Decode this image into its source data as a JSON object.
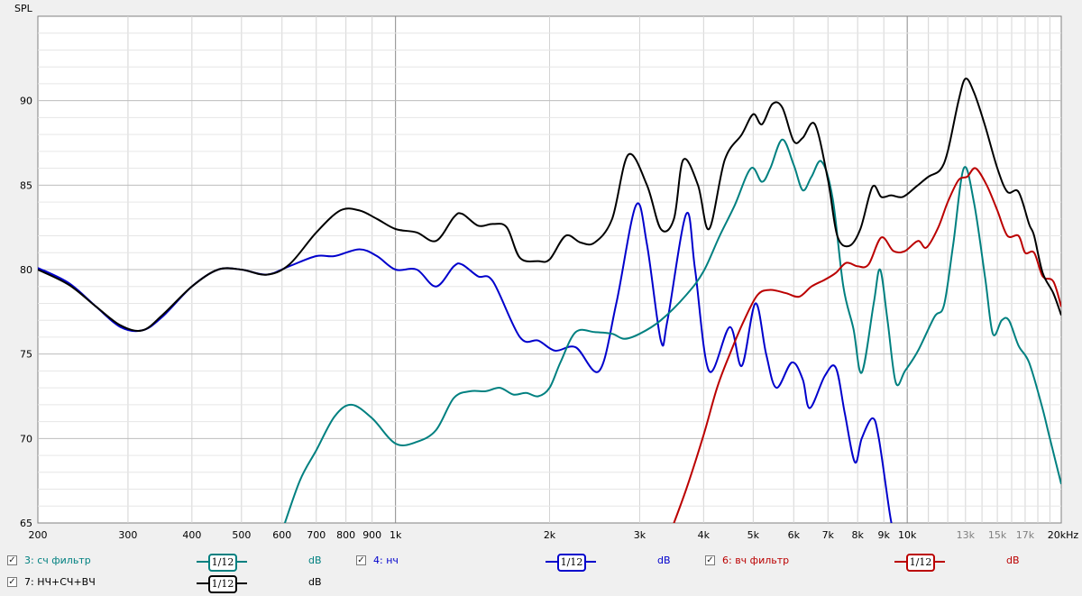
{
  "chart_data": {
    "type": "line",
    "ylabel": "SPL",
    "x_unit_label": "20kHz",
    "xscale": "log",
    "xlim": [
      200,
      20000
    ],
    "ylim": [
      65,
      95
    ],
    "grid": true,
    "y_ticks": [
      65,
      70,
      75,
      80,
      85,
      90
    ],
    "x_ticks": [
      {
        "v": 200,
        "label": "200"
      },
      {
        "v": 300,
        "label": "300"
      },
      {
        "v": 400,
        "label": "400"
      },
      {
        "v": 500,
        "label": "500"
      },
      {
        "v": 600,
        "label": "600"
      },
      {
        "v": 700,
        "label": "700"
      },
      {
        "v": 800,
        "label": "800"
      },
      {
        "v": 900,
        "label": "900"
      },
      {
        "v": 1000,
        "label": "1k"
      },
      {
        "v": 2000,
        "label": "2k"
      },
      {
        "v": 3000,
        "label": "3k"
      },
      {
        "v": 4000,
        "label": "4k"
      },
      {
        "v": 5000,
        "label": "5k"
      },
      {
        "v": 6000,
        "label": "6k"
      },
      {
        "v": 7000,
        "label": "7k"
      },
      {
        "v": 8000,
        "label": "8k"
      },
      {
        "v": 9000,
        "label": "9k"
      },
      {
        "v": 10000,
        "label": "10k"
      },
      {
        "v": 13000,
        "label": "13k"
      },
      {
        "v": 15000,
        "label": "15k"
      },
      {
        "v": 17000,
        "label": "17k"
      },
      {
        "v": 20000,
        "label": "20kHz"
      }
    ],
    "series": [
      {
        "name": "4: нч",
        "color": "#0000cc",
        "points": [
          [
            200,
            80.1
          ],
          [
            230,
            79.2
          ],
          [
            260,
            77.8
          ],
          [
            290,
            76.6
          ],
          [
            320,
            76.4
          ],
          [
            350,
            77.2
          ],
          [
            400,
            79.0
          ],
          [
            450,
            80.0
          ],
          [
            500,
            80.0
          ],
          [
            560,
            79.7
          ],
          [
            620,
            80.2
          ],
          [
            700,
            80.8
          ],
          [
            760,
            80.8
          ],
          [
            850,
            81.2
          ],
          [
            920,
            80.8
          ],
          [
            1000,
            80.0
          ],
          [
            1100,
            80.0
          ],
          [
            1200,
            79.0
          ],
          [
            1300,
            80.2
          ],
          [
            1350,
            80.3
          ],
          [
            1450,
            79.6
          ],
          [
            1550,
            79.3
          ],
          [
            1750,
            76.0
          ],
          [
            1900,
            75.8
          ],
          [
            2050,
            75.2
          ],
          [
            2250,
            75.4
          ],
          [
            2500,
            74.0
          ],
          [
            2700,
            78.0
          ],
          [
            2950,
            83.8
          ],
          [
            3100,
            81.5
          ],
          [
            3300,
            75.8
          ],
          [
            3400,
            77.0
          ],
          [
            3700,
            83.3
          ],
          [
            3850,
            80.0
          ],
          [
            4100,
            74.0
          ],
          [
            4500,
            76.6
          ],
          [
            4750,
            74.3
          ],
          [
            5050,
            78.0
          ],
          [
            5300,
            75.0
          ],
          [
            5550,
            73.0
          ],
          [
            5950,
            74.5
          ],
          [
            6250,
            73.5
          ],
          [
            6450,
            71.8
          ],
          [
            6900,
            73.7
          ],
          [
            7250,
            74.2
          ],
          [
            7550,
            71.5
          ],
          [
            7900,
            68.6
          ],
          [
            8150,
            70.0
          ],
          [
            8550,
            71.2
          ],
          [
            8800,
            70.0
          ],
          [
            9250,
            65.5
          ],
          [
            9400,
            64.5
          ]
        ]
      },
      {
        "name": "3: сч фильтр",
        "color": "#008080",
        "points": [
          [
            600,
            64.5
          ],
          [
            650,
            67.5
          ],
          [
            700,
            69.3
          ],
          [
            760,
            71.3
          ],
          [
            820,
            72.0
          ],
          [
            900,
            71.2
          ],
          [
            1000,
            69.7
          ],
          [
            1100,
            69.8
          ],
          [
            1200,
            70.5
          ],
          [
            1300,
            72.4
          ],
          [
            1400,
            72.8
          ],
          [
            1500,
            72.8
          ],
          [
            1600,
            73.0
          ],
          [
            1700,
            72.6
          ],
          [
            1800,
            72.7
          ],
          [
            1900,
            72.5
          ],
          [
            2000,
            73.0
          ],
          [
            2100,
            74.5
          ],
          [
            2250,
            76.3
          ],
          [
            2450,
            76.3
          ],
          [
            2650,
            76.2
          ],
          [
            2800,
            75.9
          ],
          [
            3000,
            76.2
          ],
          [
            3300,
            77.0
          ],
          [
            3700,
            78.5
          ],
          [
            4000,
            79.9
          ],
          [
            4300,
            82.0
          ],
          [
            4600,
            83.8
          ],
          [
            4950,
            86.0
          ],
          [
            5200,
            85.2
          ],
          [
            5400,
            86.0
          ],
          [
            5700,
            87.7
          ],
          [
            6000,
            86.2
          ],
          [
            6250,
            84.7
          ],
          [
            6500,
            85.5
          ],
          [
            6800,
            86.4
          ],
          [
            7150,
            84.2
          ],
          [
            7500,
            79.0
          ],
          [
            7850,
            76.5
          ],
          [
            8150,
            73.9
          ],
          [
            8600,
            78.0
          ],
          [
            8850,
            80.0
          ],
          [
            9150,
            77.0
          ],
          [
            9500,
            73.3
          ],
          [
            9900,
            74.0
          ],
          [
            10500,
            75.2
          ],
          [
            11300,
            77.2
          ],
          [
            11800,
            77.9
          ],
          [
            12300,
            81.5
          ],
          [
            12900,
            86.0
          ],
          [
            13500,
            84.0
          ],
          [
            14200,
            79.5
          ],
          [
            14700,
            76.2
          ],
          [
            15300,
            77.0
          ],
          [
            15800,
            77.0
          ],
          [
            16500,
            75.5
          ],
          [
            17300,
            74.5
          ],
          [
            18300,
            72.0
          ],
          [
            19000,
            70.0
          ],
          [
            20000,
            67.3
          ]
        ]
      },
      {
        "name": "6: вч фильтр",
        "color": "#bb0000",
        "points": [
          [
            3450,
            64.5
          ],
          [
            3700,
            67.0
          ],
          [
            4000,
            70.2
          ],
          [
            4250,
            73.0
          ],
          [
            4500,
            75.0
          ],
          [
            4800,
            77.0
          ],
          [
            5100,
            78.5
          ],
          [
            5400,
            78.8
          ],
          [
            5800,
            78.6
          ],
          [
            6150,
            78.4
          ],
          [
            6500,
            79.0
          ],
          [
            6900,
            79.4
          ],
          [
            7250,
            79.8
          ],
          [
            7600,
            80.4
          ],
          [
            8000,
            80.2
          ],
          [
            8400,
            80.3
          ],
          [
            8900,
            81.9
          ],
          [
            9400,
            81.1
          ],
          [
            9900,
            81.1
          ],
          [
            10500,
            81.7
          ],
          [
            10900,
            81.3
          ],
          [
            11500,
            82.5
          ],
          [
            12000,
            84.0
          ],
          [
            12600,
            85.3
          ],
          [
            13100,
            85.5
          ],
          [
            13600,
            86.0
          ],
          [
            14300,
            85.0
          ],
          [
            15000,
            83.5
          ],
          [
            15700,
            82.0
          ],
          [
            16500,
            82.0
          ],
          [
            17000,
            81.0
          ],
          [
            17700,
            81.0
          ],
          [
            18400,
            79.6
          ],
          [
            19300,
            79.3
          ],
          [
            20000,
            77.8
          ]
        ]
      },
      {
        "name": "7: НЧ+СЧ+ВЧ",
        "color": "#000000",
        "points": [
          [
            200,
            80.0
          ],
          [
            230,
            79.1
          ],
          [
            260,
            77.8
          ],
          [
            290,
            76.7
          ],
          [
            320,
            76.4
          ],
          [
            350,
            77.3
          ],
          [
            400,
            79.0
          ],
          [
            450,
            80.0
          ],
          [
            500,
            80.0
          ],
          [
            560,
            79.7
          ],
          [
            620,
            80.3
          ],
          [
            700,
            82.2
          ],
          [
            780,
            83.5
          ],
          [
            850,
            83.5
          ],
          [
            920,
            83.0
          ],
          [
            1000,
            82.4
          ],
          [
            1100,
            82.2
          ],
          [
            1200,
            81.7
          ],
          [
            1300,
            83.1
          ],
          [
            1350,
            83.3
          ],
          [
            1450,
            82.6
          ],
          [
            1550,
            82.7
          ],
          [
            1650,
            82.5
          ],
          [
            1750,
            80.7
          ],
          [
            1900,
            80.5
          ],
          [
            2000,
            80.6
          ],
          [
            2150,
            82.0
          ],
          [
            2300,
            81.6
          ],
          [
            2450,
            81.6
          ],
          [
            2650,
            83.0
          ],
          [
            2850,
            86.8
          ],
          [
            3100,
            85.0
          ],
          [
            3300,
            82.4
          ],
          [
            3500,
            83.0
          ],
          [
            3650,
            86.5
          ],
          [
            3900,
            85.0
          ],
          [
            4100,
            82.4
          ],
          [
            4400,
            86.5
          ],
          [
            4750,
            88.0
          ],
          [
            5000,
            89.2
          ],
          [
            5200,
            88.6
          ],
          [
            5450,
            89.8
          ],
          [
            5700,
            89.6
          ],
          [
            6000,
            87.6
          ],
          [
            6250,
            87.8
          ],
          [
            6600,
            88.6
          ],
          [
            7000,
            85.3
          ],
          [
            7300,
            82.0
          ],
          [
            7700,
            81.4
          ],
          [
            8100,
            82.4
          ],
          [
            8550,
            84.9
          ],
          [
            8900,
            84.3
          ],
          [
            9300,
            84.4
          ],
          [
            9800,
            84.3
          ],
          [
            10400,
            84.9
          ],
          [
            11000,
            85.5
          ],
          [
            11600,
            85.9
          ],
          [
            12000,
            87.0
          ],
          [
            12600,
            90.0
          ],
          [
            13000,
            91.3
          ],
          [
            13500,
            90.5
          ],
          [
            14200,
            88.5
          ],
          [
            15000,
            86.0
          ],
          [
            15700,
            84.6
          ],
          [
            16500,
            84.6
          ],
          [
            17300,
            82.7
          ],
          [
            17700,
            82.0
          ],
          [
            18400,
            79.8
          ],
          [
            19300,
            78.6
          ],
          [
            20000,
            77.3
          ]
        ]
      }
    ]
  },
  "legend": {
    "items": [
      {
        "checked": "✓",
        "label": "3: сч фильтр",
        "color": "#008080",
        "smoothing": "1/12",
        "unit": "dB"
      },
      {
        "checked": "✓",
        "label": "4: нч",
        "color": "#0000cc",
        "smoothing": "1/12",
        "unit": "dB"
      },
      {
        "checked": "✓",
        "label": "6: вч фильтр",
        "color": "#bb0000",
        "smoothing": "1/12",
        "unit": "dB"
      },
      {
        "checked": "✓",
        "label": "7: НЧ+СЧ+ВЧ",
        "color": "#000000",
        "smoothing": "1/12",
        "unit": "dB"
      }
    ]
  }
}
